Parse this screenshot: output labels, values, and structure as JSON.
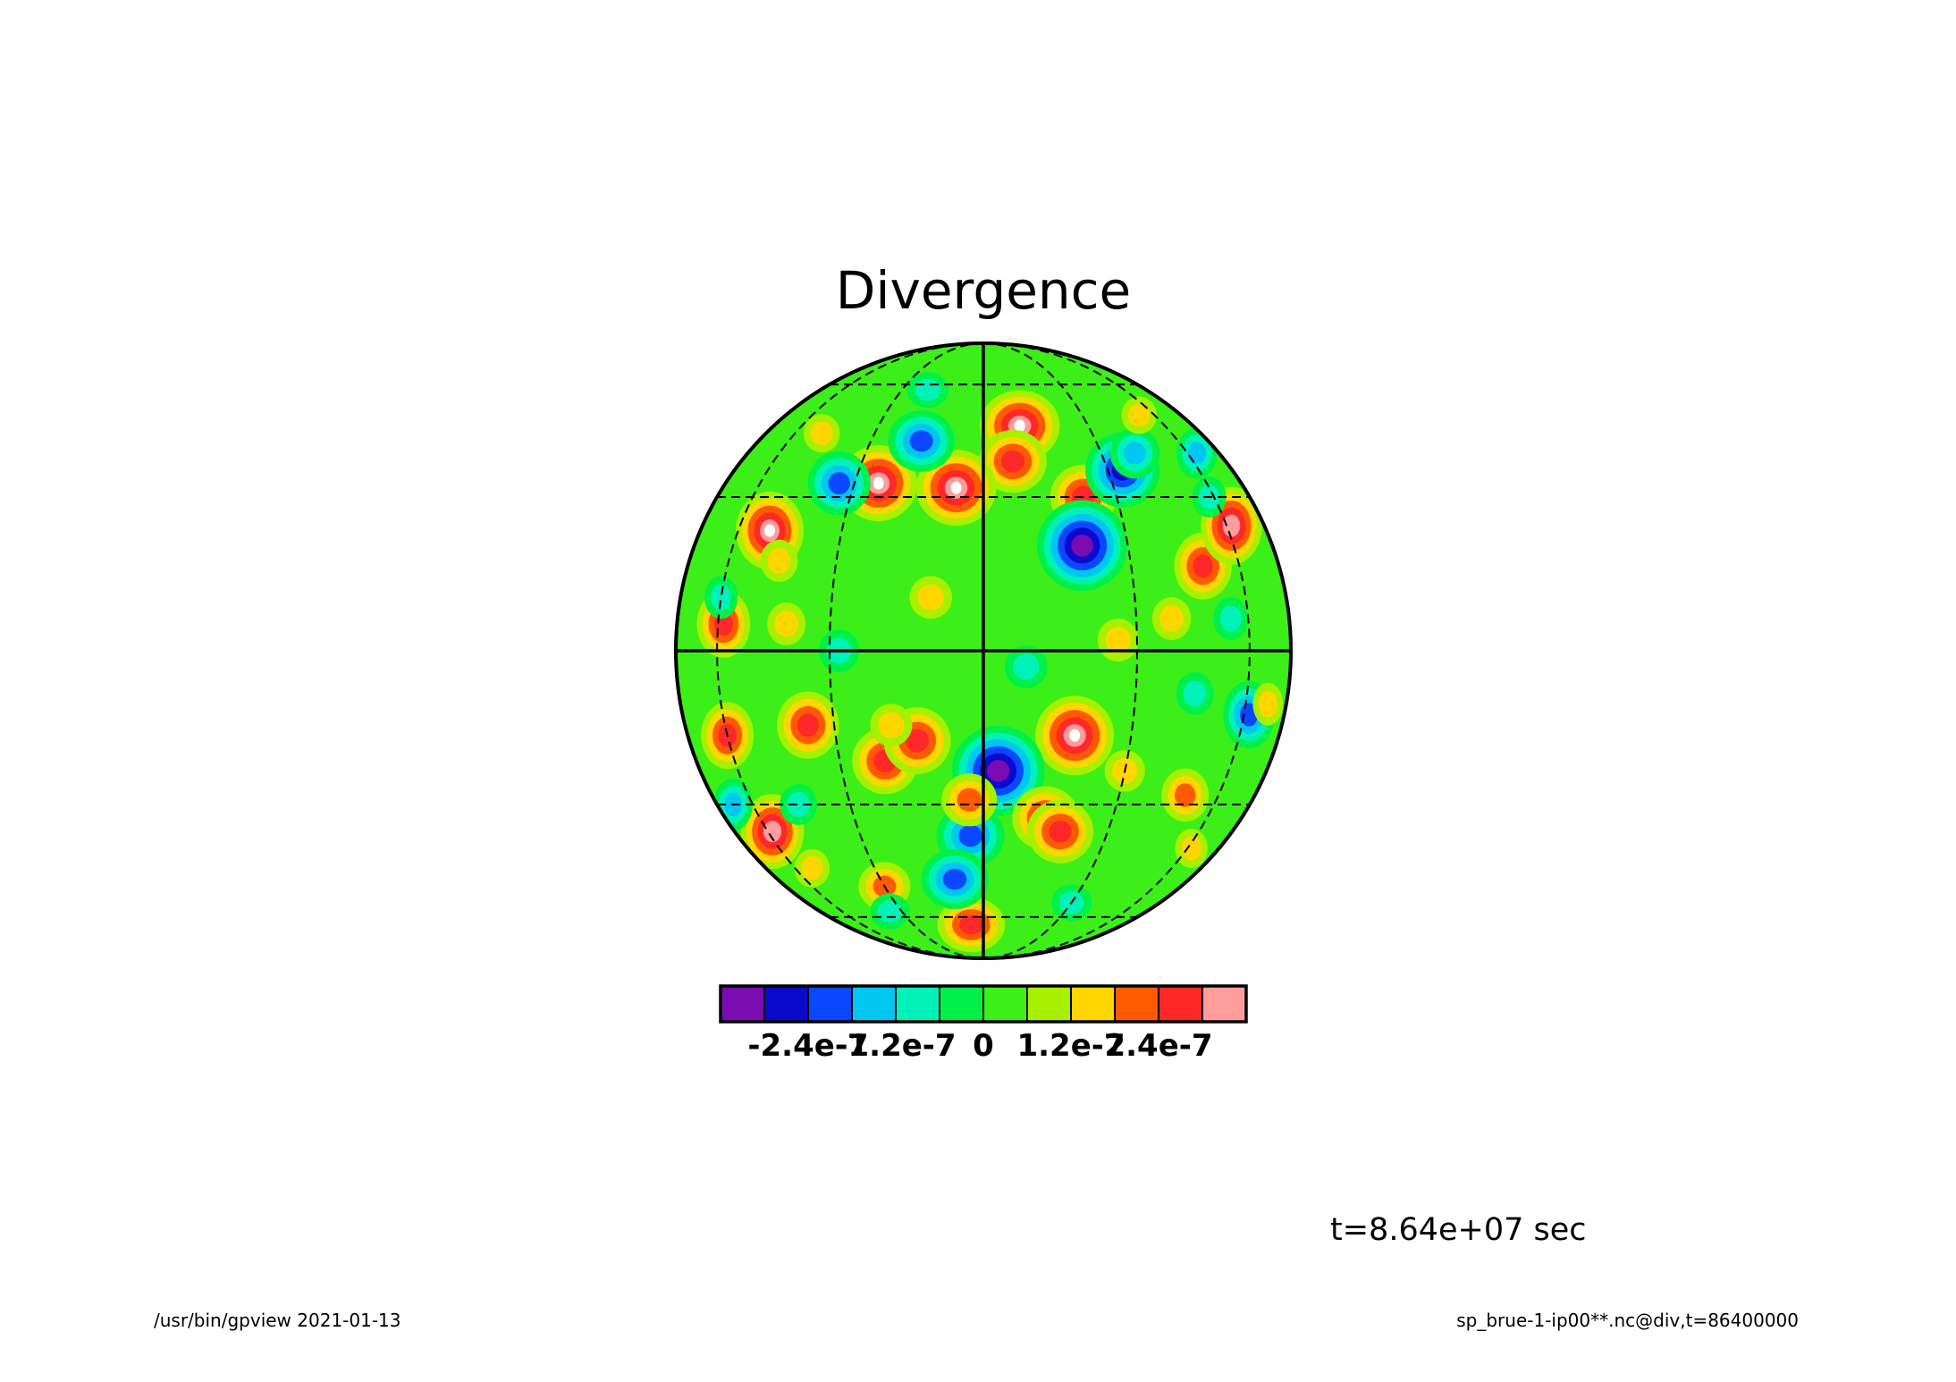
{
  "chart_data": {
    "type": "heatmap",
    "projection": "orthographic",
    "title": "Divergence",
    "colorbar": {
      "colors": [
        "#7a0bb0",
        "#0a0acc",
        "#0a48ff",
        "#00c6f2",
        "#00f2b8",
        "#00f04a",
        "#3cef18",
        "#a6f000",
        "#ffd600",
        "#ff5a00",
        "#ff2828",
        "#ff9d9d"
      ],
      "tick_labels": [
        "-2.4e-7",
        "-1.2e-7",
        "0",
        "1.2e-7",
        "2.4e-7"
      ],
      "tick_values": [
        -2.4e-07,
        -1.2e-07,
        0,
        1.2e-07,
        2.4e-07
      ],
      "range": [
        -3.6e-07,
        3.6e-07
      ]
    },
    "graticule": {
      "latitudes_dashed": [
        -60,
        -30,
        30,
        60
      ],
      "longitudes_dashed": [
        -60,
        -30,
        30,
        60
      ],
      "equator_solid": true,
      "central_meridian_solid": true
    },
    "features": [
      {
        "lon": 10,
        "lat": 47,
        "value": 3.5e-07
      },
      {
        "lon": 7,
        "lat": 38,
        "value": 2.4e-07
      },
      {
        "lon": -24,
        "lat": 33,
        "value": 3.4e-07
      },
      {
        "lon": -6,
        "lat": 32,
        "value": 3.3e-07
      },
      {
        "lon": -49,
        "lat": 23,
        "value": 3.3e-07
      },
      {
        "lon": 22,
        "lat": 30,
        "value": 2.4e-07
      },
      {
        "lon": 34,
        "lat": 36,
        "value": -3e-07
      },
      {
        "lon": 20,
        "lat": 20,
        "value": -3.3e-07
      },
      {
        "lon": -34,
        "lat": 33,
        "value": -2e-07
      },
      {
        "lon": -16,
        "lat": 43,
        "value": -2e-07
      },
      {
        "lon": 38,
        "lat": 6,
        "value": 1.6e-07
      },
      {
        "lon": 48,
        "lat": 16,
        "value": 2.4e-07
      },
      {
        "lon": 62,
        "lat": 24,
        "value": 3e-07
      },
      {
        "lon": -44,
        "lat": 17,
        "value": 1.6e-07
      },
      {
        "lon": -58,
        "lat": 5,
        "value": 2.4e-07
      },
      {
        "lon": -40,
        "lat": 5,
        "value": 1.2e-07
      },
      {
        "lon": 18,
        "lat": -16,
        "value": 3.6e-07
      },
      {
        "lon": 3,
        "lat": -23,
        "value": -3.3e-07
      },
      {
        "lon": -20,
        "lat": -21,
        "value": 2.4e-07
      },
      {
        "lon": -13,
        "lat": -17,
        "value": 2.4e-07
      },
      {
        "lon": -36,
        "lat": -14,
        "value": 2.4e-07
      },
      {
        "lon": -18,
        "lat": -14,
        "value": 1.6e-07
      },
      {
        "lon": 14,
        "lat": -33,
        "value": 2.4e-07
      },
      {
        "lon": 18,
        "lat": -36,
        "value": 2.4e-07
      },
      {
        "lon": -3,
        "lat": -37,
        "value": -2.4e-07
      },
      {
        "lon": -3,
        "lat": -29,
        "value": 2e-07
      },
      {
        "lon": 30,
        "lat": -23,
        "value": 1.6e-07
      },
      {
        "lon": 62,
        "lat": -12,
        "value": -2.4e-07
      },
      {
        "lon": -60,
        "lat": -16,
        "value": 2.4e-07
      },
      {
        "lon": -58,
        "lat": -36,
        "value": 3e-07
      },
      {
        "lon": -30,
        "lat": -50,
        "value": 2e-07
      },
      {
        "lon": -5,
        "lat": -63,
        "value": 2.4e-07
      },
      {
        "lon": 48,
        "lat": -28,
        "value": 2e-07
      },
      {
        "lon": 8,
        "lat": -3,
        "value": -1.2e-07
      },
      {
        "lon": -10,
        "lat": 10,
        "value": 1.2e-07
      },
      {
        "lon": 40,
        "lat": 40,
        "value": -1.6e-07
      },
      {
        "lon": -48,
        "lat": 45,
        "value": 1.2e-07
      },
      {
        "lon": -60,
        "lat": 10,
        "value": -1.2e-07
      },
      {
        "lon": -8,
        "lat": -48,
        "value": -2e-07
      },
      {
        "lon": 54,
        "lat": 6,
        "value": -1.2e-07
      },
      {
        "lon": 26,
        "lat": 2,
        "value": 1.2e-07
      },
      {
        "lon": -28,
        "lat": 0,
        "value": -1.2e-07
      },
      {
        "lon": 44,
        "lat": -8,
        "value": -1.2e-07
      },
      {
        "lon": -44,
        "lat": -30,
        "value": -1.2e-07
      },
      {
        "lon": 65,
        "lat": 40,
        "value": -1.6e-07
      },
      {
        "lon": 70,
        "lat": -10,
        "value": 1.6e-07
      },
      {
        "lon": -20,
        "lat": 58,
        "value": -1.2e-07
      },
      {
        "lon": 30,
        "lat": -55,
        "value": -1.2e-07
      },
      {
        "lon": -70,
        "lat": -30,
        "value": -1.6e-07
      },
      {
        "lon": -52,
        "lat": -45,
        "value": 1.6e-07
      },
      {
        "lon": 62,
        "lat": -40,
        "value": 1.6e-07
      },
      {
        "lon": -35,
        "lat": -58,
        "value": -1.2e-07
      },
      {
        "lon": 52,
        "lat": 50,
        "value": 1.2e-07
      },
      {
        "lon": 58,
        "lat": 30,
        "value": -1.2e-07
      }
    ]
  },
  "time_label": "t=8.64e+07 sec",
  "footer": {
    "left": "/usr/bin/gpview  2021-01-13",
    "right": "sp_brue-1-ip00**.nc@div,t=86400000"
  }
}
